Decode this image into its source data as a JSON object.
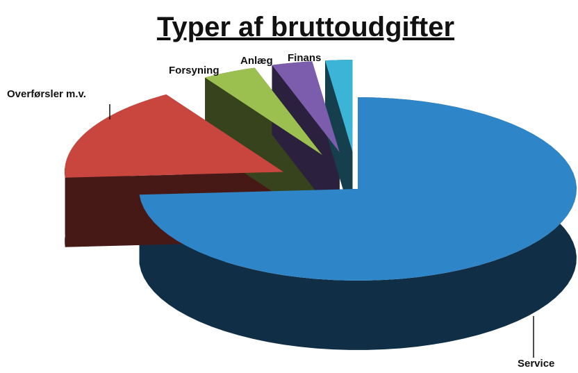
{
  "chart_data": {
    "type": "pie",
    "title": "Typer af bruttoudgifter",
    "categories": [
      "Service",
      "Overførsler m.v.",
      "Forsyning",
      "Anlæg",
      "Finans"
    ],
    "values": [
      74,
      17,
      4,
      3,
      2
    ],
    "colors": [
      "#2e86c8",
      "#c9463f",
      "#9bc04f",
      "#7b5cad",
      "#3bb4d8"
    ]
  }
}
